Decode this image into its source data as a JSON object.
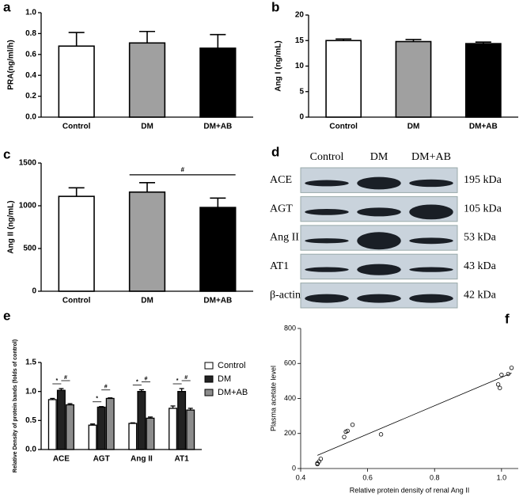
{
  "chart_data": [
    {
      "type": "bar",
      "panel": "a",
      "ylabel": "PRA(ng/ml/h)",
      "categories": [
        "Control",
        "DM",
        "DM+AB"
      ],
      "values": [
        0.68,
        0.71,
        0.66
      ],
      "errors": [
        0.13,
        0.11,
        0.13
      ],
      "colors": [
        "#ffffff",
        "#a0a0a0",
        "#000000"
      ],
      "ylim": [
        0,
        1.0
      ],
      "yticks": [
        {
          "value": 0,
          "label": "0.0"
        },
        0.2,
        0.4,
        0.6,
        0.8,
        {
          "value": 1.0,
          "label": "1.0"
        }
      ]
    },
    {
      "type": "bar",
      "panel": "b",
      "ylabel": "Ang I (ng/mL)",
      "categories": [
        "Control",
        "DM",
        "DM+AB"
      ],
      "values": [
        15.0,
        14.8,
        14.4
      ],
      "errors": [
        0.3,
        0.4,
        0.3
      ],
      "colors": [
        "#ffffff",
        "#a0a0a0",
        "#000000"
      ],
      "ylim": [
        0,
        20
      ],
      "yticks": [
        0,
        5,
        10,
        15,
        20
      ]
    },
    {
      "type": "bar",
      "panel": "c",
      "ylabel": "Ang II (ng/mL)",
      "categories": [
        "Control",
        "DM",
        "DM+AB"
      ],
      "values": [
        1110,
        1160,
        980
      ],
      "errors": [
        100,
        110,
        110
      ],
      "colors": [
        "#ffffff",
        "#a0a0a0",
        "#000000"
      ],
      "ylim": [
        0,
        1500
      ],
      "yticks": [
        0,
        500,
        1000,
        1500
      ],
      "annotation": "#"
    },
    {
      "type": "blot",
      "panel": "d",
      "columns": [
        "Control",
        "DM",
        "DM+AB"
      ],
      "rows": [
        {
          "name": "ACE",
          "size": "195 kDa"
        },
        {
          "name": "AGT",
          "size": "105 kDa"
        },
        {
          "name": "Ang II",
          "size": "53 kDa"
        },
        {
          "name": "AT1",
          "size": "43 kDa"
        },
        {
          "name": "β-actin",
          "size": "42 kDa"
        }
      ]
    },
    {
      "type": "grouped_bar",
      "panel": "e",
      "ylabel": "Relative Density of protein bands (folds of control)",
      "categories": [
        "ACE",
        "AGT",
        "Ang II",
        "AT1"
      ],
      "series": [
        {
          "name": "Control",
          "color": "#ffffff",
          "values": [
            0.86,
            0.42,
            0.45,
            0.71
          ],
          "errors": [
            0.02,
            0.02,
            0.01,
            0.04
          ]
        },
        {
          "name": "DM",
          "color": "#222222",
          "values": [
            1.02,
            0.73,
            1.0,
            1.0
          ],
          "errors": [
            0.03,
            0.01,
            0.03,
            0.05
          ]
        },
        {
          "name": "DM+AB",
          "color": "#8c8c8c",
          "values": [
            0.77,
            0.88,
            0.54,
            0.68
          ],
          "errors": [
            0.02,
            0.01,
            0.02,
            0.03
          ]
        }
      ],
      "significance": [
        [
          "*",
          "#"
        ],
        [
          "*",
          "#"
        ],
        [
          "*",
          "#"
        ],
        [
          "*",
          "#"
        ]
      ],
      "ylim": [
        0,
        1.5
      ],
      "yticks": [
        {
          "value": 0,
          "label": "0.0"
        },
        0.5,
        {
          "value": 1.0,
          "label": "1.0"
        },
        1.5
      ],
      "legend": "top-right"
    },
    {
      "type": "scatter",
      "panel": "f",
      "xlabel": "Relative protein density of renal Ang II",
      "ylabel": "Plasma acetate level",
      "x": [
        0.45,
        0.455,
        0.46,
        0.45,
        0.53,
        0.535,
        0.54,
        0.555,
        0.64,
        0.99,
        0.995,
        1.0,
        1.02,
        1.03
      ],
      "y": [
        30,
        40,
        55,
        25,
        180,
        210,
        215,
        250,
        195,
        480,
        460,
        535,
        540,
        575
      ],
      "fit": {
        "x": [
          0.45,
          1.03
        ],
        "y": [
          75,
          545
        ]
      },
      "xlim": [
        0.4,
        1.05
      ],
      "xticks": [
        0.4,
        0.6,
        0.8,
        {
          "value": 1.0,
          "label": "1.0"
        }
      ],
      "ylim": [
        0,
        800
      ],
      "yticks": [
        0,
        200,
        400,
        600,
        800
      ]
    }
  ]
}
